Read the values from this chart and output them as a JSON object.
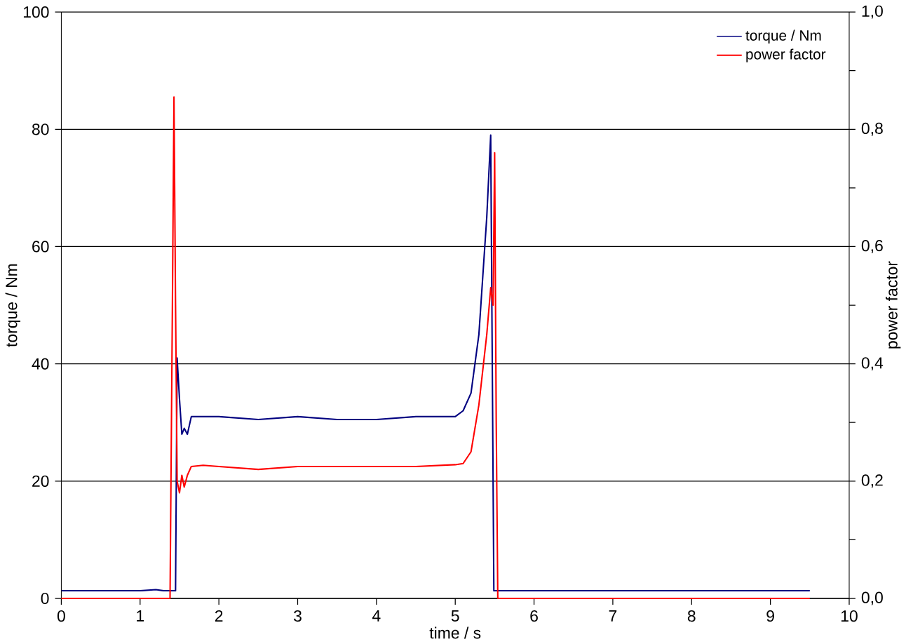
{
  "chart_data": {
    "type": "line",
    "xlabel": "time / s",
    "ylabel": "torque / Nm",
    "y2label": "power factor",
    "xlim": [
      0,
      10
    ],
    "xticks": [
      0,
      1,
      2,
      3,
      4,
      5,
      6,
      7,
      8,
      9,
      10
    ],
    "ylim": [
      0,
      100
    ],
    "yticks": [
      0,
      20,
      40,
      60,
      80,
      100
    ],
    "y2lim": [
      0,
      1
    ],
    "y2ticks": [
      {
        "value": 0,
        "label": "0,0"
      },
      {
        "value": 0.1,
        "label": null
      },
      {
        "value": 0.2,
        "label": "0,2"
      },
      {
        "value": 0.3,
        "label": null
      },
      {
        "value": 0.4,
        "label": "0,4"
      },
      {
        "value": 0.5,
        "label": null
      },
      {
        "value": 0.6,
        "label": "0,6"
      },
      {
        "value": 0.7,
        "label": null
      },
      {
        "value": 0.8,
        "label": "0,8"
      },
      {
        "value": 0.9,
        "label": null
      },
      {
        "value": 1,
        "label": "1,0"
      }
    ],
    "grid": "y",
    "legend": "top right",
    "line_style": "solid",
    "marker": "none",
    "series": [
      {
        "name": "torque / Nm",
        "color": "#000080",
        "x": [
          0,
          0.5,
          1,
          1.2,
          1.3,
          1.4,
          1.45,
          1.47,
          1.5,
          1.53,
          1.56,
          1.6,
          1.65,
          1.8,
          2,
          2.5,
          3,
          3.5,
          4,
          4.5,
          5,
          5.1,
          5.2,
          5.3,
          5.35,
          5.4,
          5.45,
          5.47,
          5.49,
          5.6,
          6,
          7,
          8,
          9,
          9.5
        ],
        "values": [
          1.3,
          1.3,
          1.3,
          1.5,
          1.3,
          1.3,
          1.3,
          41,
          34,
          28,
          29,
          28,
          31,
          31,
          31,
          30.5,
          31,
          30.5,
          30.5,
          31,
          31,
          32,
          35,
          45,
          55,
          65,
          79,
          40,
          1.3,
          1.3,
          1.3,
          1.3,
          1.3,
          1.3,
          1.3
        ]
      },
      {
        "name": "power factor",
        "color": "#ff0000",
        "axis": "y2",
        "x": [
          0,
          0.5,
          1,
          1.38,
          1.41,
          1.43,
          1.45,
          1.47,
          1.5,
          1.53,
          1.56,
          1.6,
          1.65,
          1.8,
          2,
          2.5,
          3,
          3.5,
          4,
          4.5,
          5,
          5.1,
          5.2,
          5.3,
          5.4,
          5.45,
          5.48,
          5.5,
          5.52,
          5.54,
          5.6,
          6,
          7,
          8,
          9,
          9.5
        ],
        "values": [
          0,
          0,
          0,
          0,
          0.5,
          0.855,
          0.5,
          0.2,
          0.18,
          0.21,
          0.19,
          0.21,
          0.225,
          0.227,
          0.225,
          0.22,
          0.225,
          0.225,
          0.225,
          0.225,
          0.228,
          0.23,
          0.25,
          0.33,
          0.45,
          0.53,
          0.5,
          0.76,
          0.3,
          0,
          0,
          0,
          0,
          0,
          0,
          0
        ]
      }
    ]
  }
}
